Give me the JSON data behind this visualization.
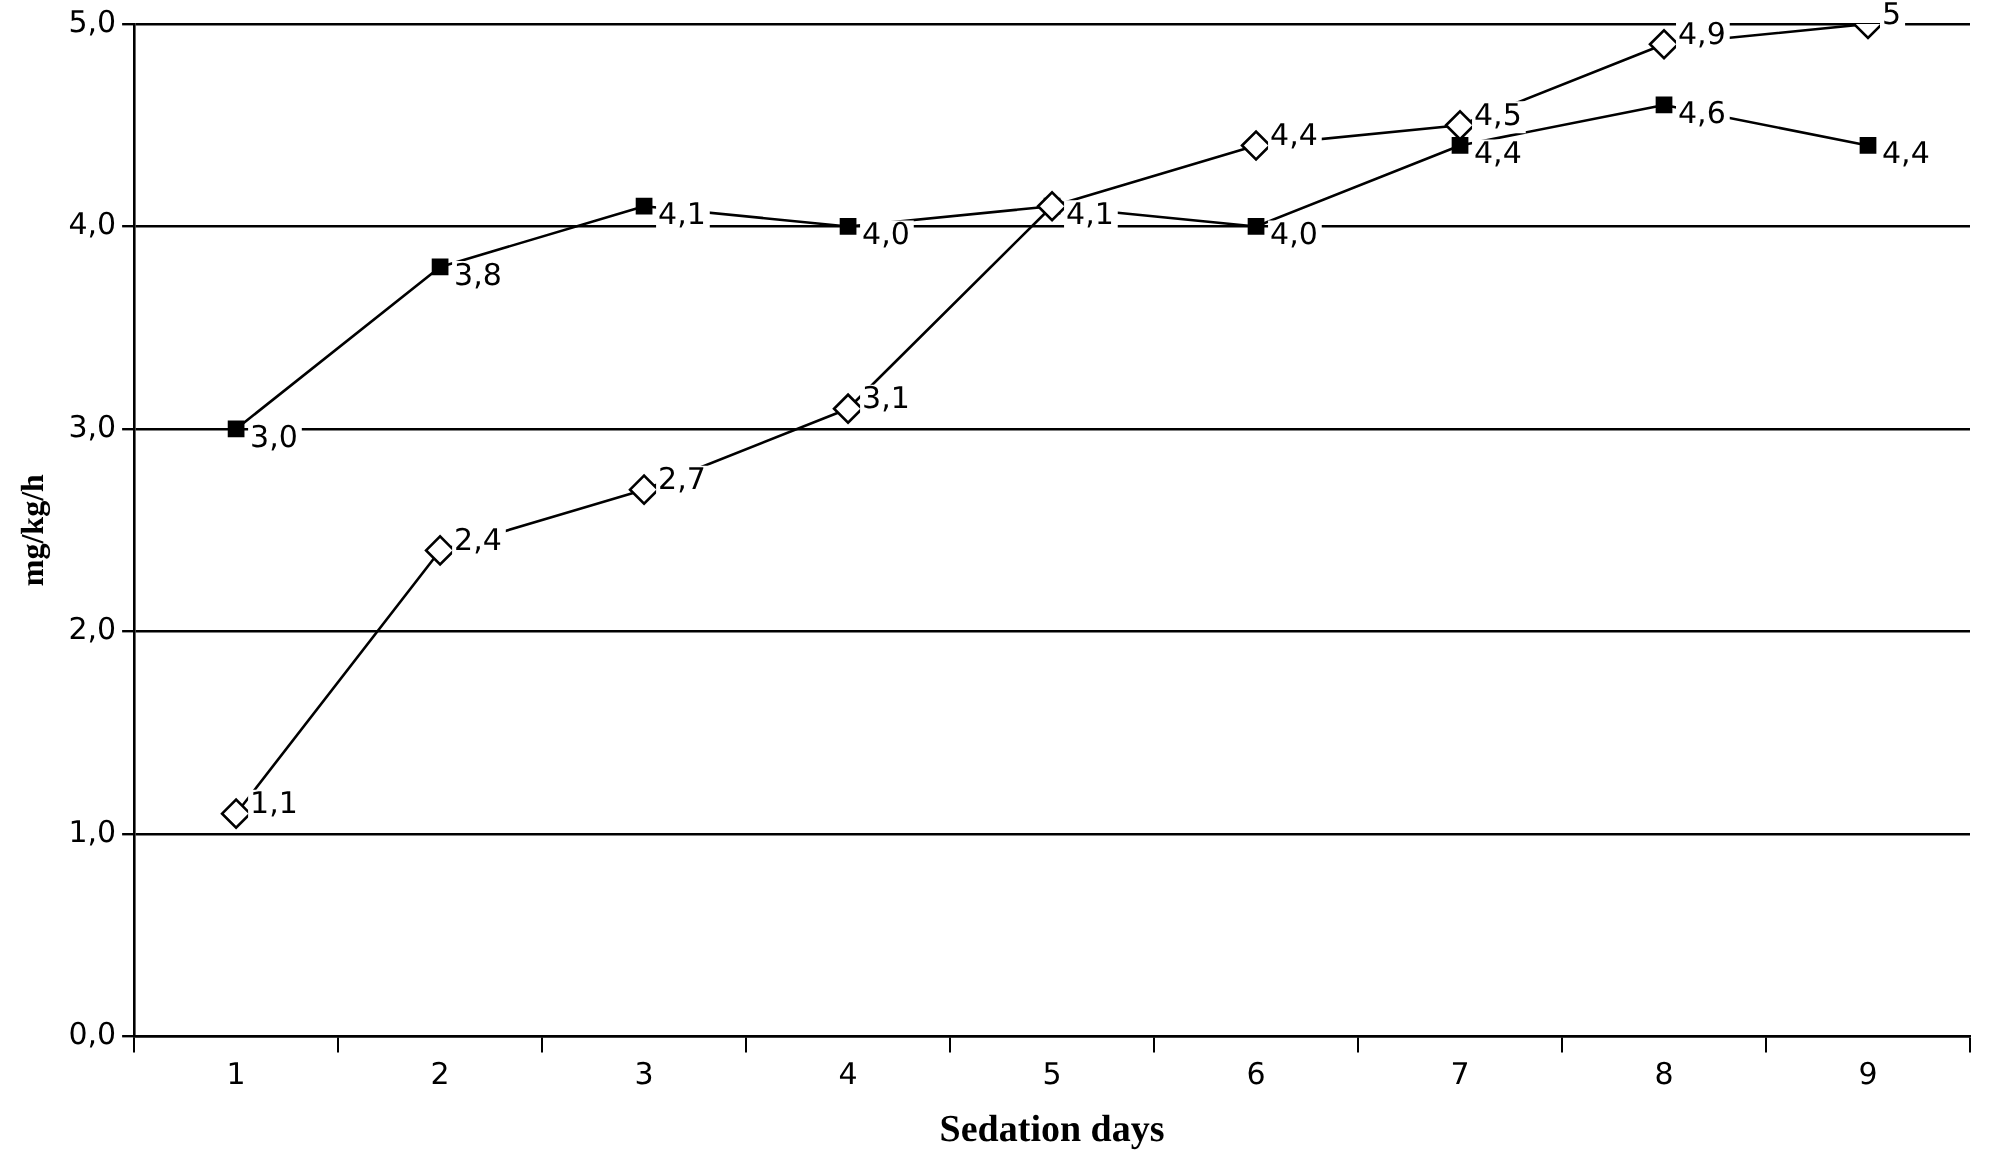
{
  "chart_data": {
    "type": "line",
    "xlabel": "Sedation days",
    "ylabel": "mg/kg/h",
    "categories": [
      "1",
      "2",
      "3",
      "4",
      "5",
      "6",
      "7",
      "8",
      "9"
    ],
    "ylim": [
      0,
      5
    ],
    "yticks": [
      {
        "value": 0,
        "label": "0,0"
      },
      {
        "value": 1,
        "label": "1,0"
      },
      {
        "value": 2,
        "label": "2,0"
      },
      {
        "value": 3,
        "label": "3,0"
      },
      {
        "value": 4,
        "label": "4,0"
      },
      {
        "value": 5,
        "label": "5,0"
      }
    ],
    "grid": "y",
    "legend": false,
    "line_style": "solid",
    "series": [
      {
        "color": "#000000",
        "marker": "diamond",
        "values": [
          1.1,
          2.4,
          2.7,
          3.1,
          4.1,
          4.4,
          4.5,
          4.9,
          5
        ],
        "value_labels": [
          "1,1",
          "2,4",
          "2,7",
          "3,1",
          null,
          "4,4",
          "4,5",
          "4,9",
          "5"
        ]
      },
      {
        "color": "#000000",
        "marker": "square",
        "values": [
          3.0,
          3.8,
          4.1,
          4.0,
          4.1,
          4.0,
          4.4,
          4.6,
          4.4
        ],
        "value_labels": [
          "3,0",
          "3,8",
          "4,1",
          "4,0",
          "4,1",
          "4,0",
          "4,4",
          "4,6",
          "4,4"
        ]
      }
    ]
  }
}
